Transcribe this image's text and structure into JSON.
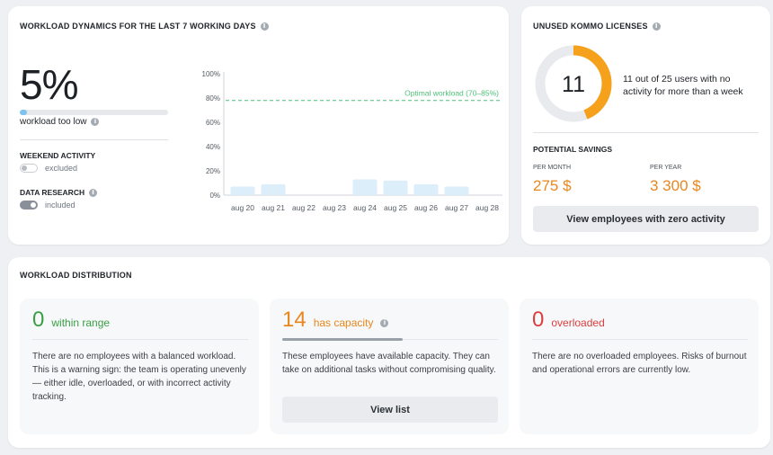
{
  "workload_dynamics": {
    "title": "WORKLOAD DYNAMICS FOR THE LAST 7 WORKING DAYS",
    "percent": "5%",
    "progress_fraction": 0.05,
    "status_text": "workload too low",
    "weekend_activity": {
      "label": "WEEKEND ACTIVITY",
      "toggle_text": "excluded",
      "on": false
    },
    "data_research": {
      "label": "DATA RESEARCH",
      "toggle_text": "included",
      "on": true
    }
  },
  "chart_data": {
    "type": "bar",
    "categories": [
      "aug 20",
      "aug 21",
      "aug 22",
      "aug 23",
      "aug 24",
      "aug 25",
      "aug 26",
      "aug 27",
      "aug 28"
    ],
    "values": [
      7,
      9,
      0,
      0,
      13,
      12,
      9,
      7,
      0
    ],
    "ylim": [
      0,
      100
    ],
    "yticks": [
      "0%",
      "20%",
      "40%",
      "60%",
      "80%",
      "100%"
    ],
    "ytick_values": [
      0,
      20,
      40,
      60,
      80,
      100
    ],
    "optimal_line": {
      "label": "Optimal workload (70–85%)",
      "value": 78
    },
    "colors": {
      "bar": "#ddeefb",
      "optimal": "#4fc07a",
      "axis": "#cfd3d8"
    }
  },
  "licenses": {
    "title": "UNUSED KOMMO LICENSES",
    "count": "11",
    "unused": 11,
    "total": 25,
    "description": "11 out of 25 users with no activity for more than a week",
    "savings_title": "POTENTIAL SAVINGS",
    "per_month_label": "PER MONTH",
    "per_month_value": "275 $",
    "per_year_label": "PER YEAR",
    "per_year_value": "3 300 $",
    "button_label": "View employees with zero activity",
    "colors": {
      "ring_track": "#e8eaee",
      "ring_fill": "#f5a11b",
      "savings": "#e8871e"
    }
  },
  "distribution": {
    "title": "WORKLOAD DISTRIBUTION",
    "within": {
      "count": "0",
      "label": "within range",
      "color": "#3a9e45",
      "text": "There are no employees with a balanced workload. This is a warning sign: the team is operating unevenly — either idle, overloaded, or with incorrect activity tracking."
    },
    "capacity": {
      "count": "14",
      "label": "has capacity",
      "color": "#e8871e",
      "text": "These employees have available capacity. They can take on additional tasks without compromising quality.",
      "button_label": "View list"
    },
    "overloaded": {
      "count": "0",
      "label": "overloaded",
      "color": "#d93f3f",
      "text": "There are no overloaded employees. Risks of burnout and operational errors are currently low."
    }
  }
}
